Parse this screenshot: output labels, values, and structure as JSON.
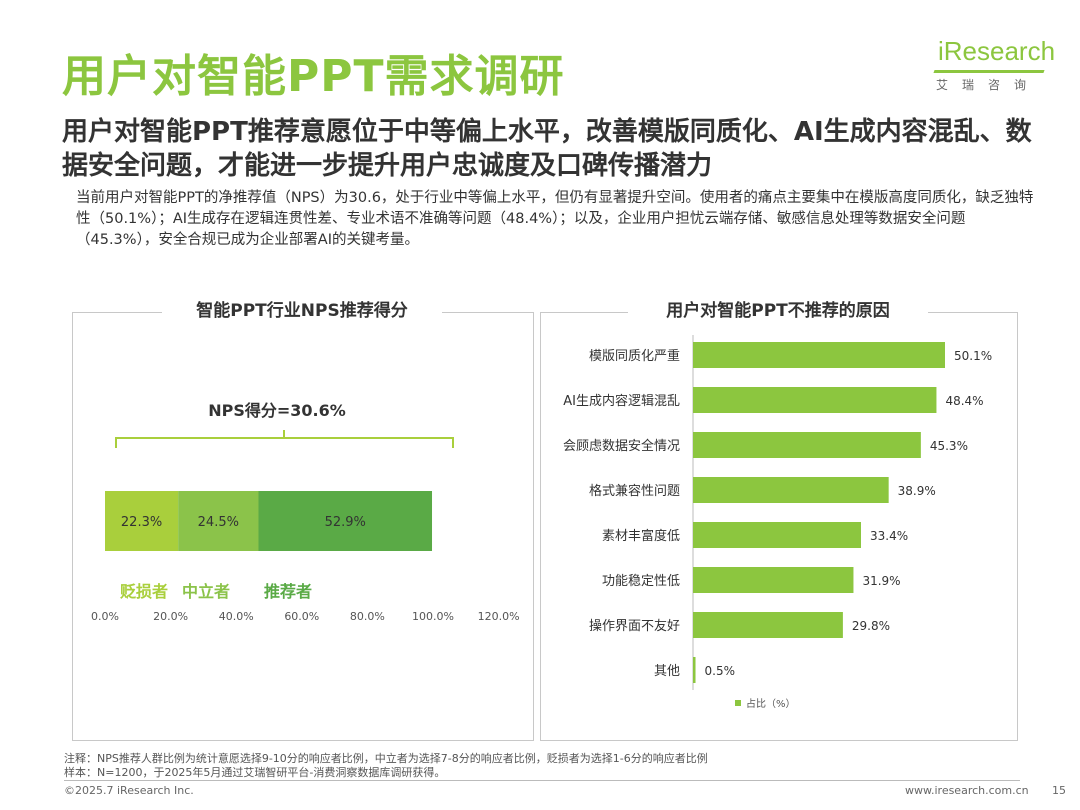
{
  "page": {
    "title": "用户对智能PPT需求调研",
    "subtitle": "用户对智能PPT推荐意愿位于中等偏上水平，改善模版同质化、AI生成内容混乱、数据安全问题，才能进一步提升用户忠诚度及口碑传播潜力",
    "description": "当前用户对智能PPT的净推荐值（NPS）为30.6，处于行业中等偏上水平，但仍有显著提升空间。使用者的痛点主要集中在模版高度同质化，缺乏独特性（50.1%）；AI生成存在逻辑连贯性差、专业术语不准确等问题（48.4%）；以及，企业用户担忧云端存储、敏感信息处理等数据安全问题（45.3%），安全合规已成为企业部署AI的关键考量。",
    "footnote_1": "注释：NPS推荐人群比例为统计意愿选择9-10分的响应者比例，中立者为选择7-8分的响应者比例，贬损者为选择1-6分的响应者比例",
    "footnote_2": "样本：N=1200，于2025年5月通过艾瑞智研平台-消费洞察数据库调研获得。",
    "copyright": "©2025.7 iResearch Inc.",
    "website": "www.iresearch.com.cn",
    "page_number": "15"
  },
  "logo": {
    "wordmark": "iResearch",
    "subtitle": "艾瑞咨询"
  },
  "colors": {
    "accent": "#8cc63f",
    "detractor": "#a9cf3c",
    "passive": "#8bc34a",
    "promoter": "#5aaa46",
    "bar": "#8cc63f"
  },
  "chart_data": [
    {
      "type": "bar",
      "orientation": "horizontal-stacked",
      "title": "智能PPT行业NPS推荐得分",
      "annotation": "NPS得分=30.6%",
      "series": [
        {
          "name": "贬损者",
          "value": 22.3,
          "label": "22.3%"
        },
        {
          "name": "中立者",
          "value": 24.5,
          "label": "24.5%"
        },
        {
          "name": "推荐者",
          "value": 52.9,
          "label": "52.9%"
        }
      ],
      "xlim": [
        0,
        120
      ],
      "xticks": [
        "0.0%",
        "20.0%",
        "40.0%",
        "60.0%",
        "80.0%",
        "100.0%",
        "120.0%"
      ]
    },
    {
      "type": "bar",
      "orientation": "horizontal",
      "title": "用户对智能PPT不推荐的原因",
      "categories": [
        "模版同质化严重",
        "AI生成内容逻辑混乱",
        "会顾虑数据安全情况",
        "格式兼容性问题",
        "素材丰富度低",
        "功能稳定性低",
        "操作界面不友好",
        "其他"
      ],
      "values": [
        50.1,
        48.4,
        45.3,
        38.9,
        33.4,
        31.9,
        29.8,
        0.5
      ],
      "labels": [
        "50.1%",
        "48.4%",
        "45.3%",
        "38.9%",
        "33.4%",
        "31.9%",
        "29.8%",
        "0.5%"
      ],
      "legend": "占比（%）",
      "xlim": [
        0,
        55
      ]
    }
  ]
}
